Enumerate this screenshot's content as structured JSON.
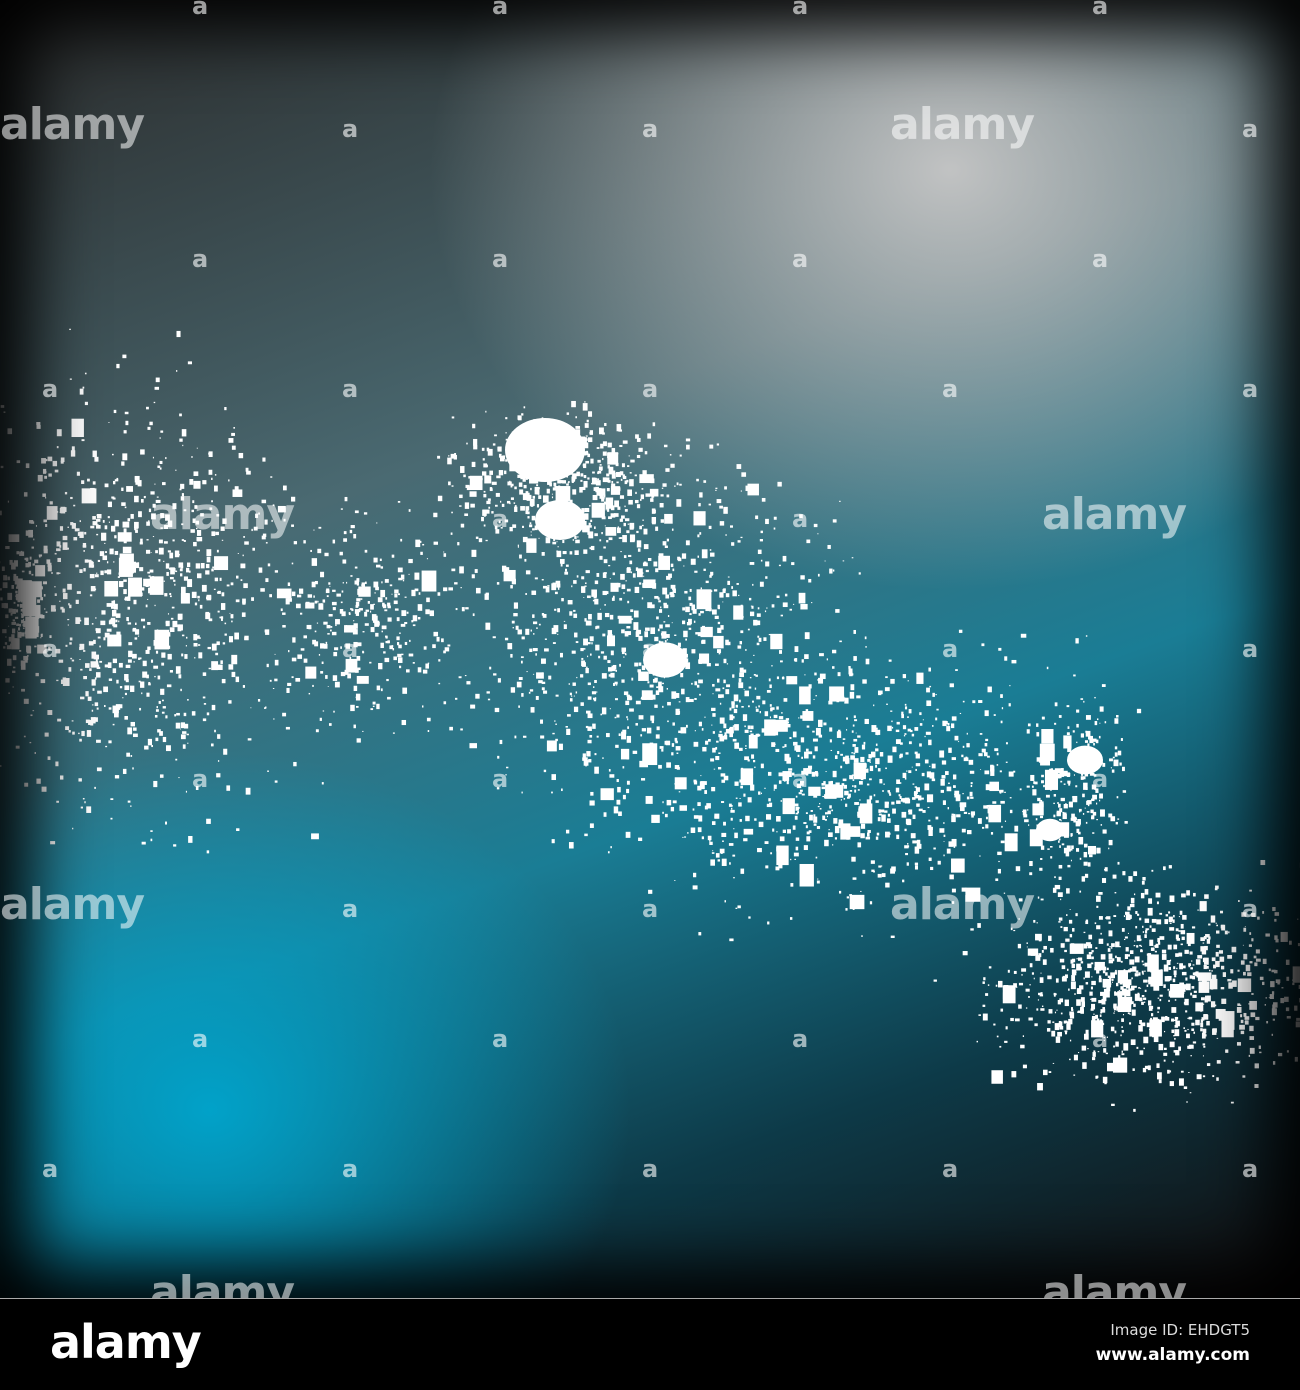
{
  "image": {
    "colors": {
      "teal": "#00a5cd",
      "grey": "#c8c8c8",
      "dark": "#120c0c",
      "splatter": "#ffffff"
    },
    "watermark_text": "alamy",
    "watermark_letter": "a"
  },
  "footer": {
    "logo": "alamy",
    "image_id": "Image ID: EHDGT5",
    "website": "www.alamy.com"
  }
}
